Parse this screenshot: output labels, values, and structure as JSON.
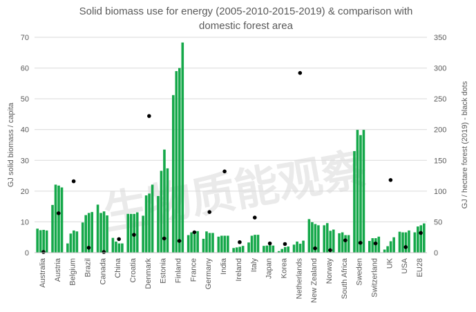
{
  "chart_data": {
    "type": "bar",
    "title_lines": [
      "Solid biomass use for energy (2005-2010-2015-2019) & comparison with",
      "domestic forest area"
    ],
    "ylabel": "GJ solid biomass / capita",
    "y2label": "GJ / hectare forest (2019) - black dots",
    "ylim": [
      0,
      70
    ],
    "y2lim": [
      0,
      350
    ],
    "yticks": [
      0,
      10,
      20,
      30,
      40,
      50,
      60,
      70
    ],
    "y2ticks": [
      0,
      50,
      100,
      150,
      200,
      250,
      300,
      350
    ],
    "years": [
      "2005",
      "2010",
      "2015",
      "2019"
    ],
    "colors": {
      "bar": "#15a84a",
      "dot": "#000000",
      "grid": "#d9d9d9",
      "text": "#595959"
    },
    "watermark": "生物质能观察",
    "categories": [
      "Australia",
      "Austria",
      "Belgium",
      "Brazil",
      "Canada",
      "China",
      "Croatia",
      "Denmark",
      "Estonia",
      "Finland",
      "France",
      "Germany",
      "India",
      "Ireland",
      "Italy",
      "Japan",
      "Korea",
      "Netherlands",
      "New Zealand",
      "Norway",
      "South Africa",
      "Sweden",
      "Switzerland",
      "UK",
      "USA",
      "EU28"
    ],
    "series": [
      {
        "values": [
          [
            7.8,
            7.3,
            7.4,
            7.2
          ],
          [
            15.5,
            22.1,
            21.8,
            21.2
          ],
          [
            3.0,
            6.2,
            7.2,
            6.9
          ],
          [
            9.8,
            12.2,
            12.9,
            13.2
          ],
          [
            15.6,
            12.9,
            13.4,
            12.1
          ],
          [
            4.8,
            3.6,
            3.0,
            3.0
          ],
          [
            12.6,
            12.6,
            12.6,
            13.1
          ],
          [
            12.0,
            18.6,
            19.2,
            22.1
          ],
          [
            18.4,
            26.6,
            33.5,
            27.4
          ],
          [
            51.2,
            59.0,
            60.0,
            68.3
          ],
          [
            5.7,
            6.6,
            6.0,
            7.0
          ],
          [
            4.5,
            6.9,
            6.4,
            6.4
          ],
          [
            5.2,
            5.5,
            5.5,
            5.5
          ],
          [
            1.5,
            1.7,
            1.9,
            2.2
          ],
          [
            3.3,
            5.5,
            5.8,
            5.8
          ],
          [
            2.2,
            2.3,
            2.4,
            2.3
          ],
          [
            0.5,
            1.2,
            1.8,
            2.0
          ],
          [
            2.6,
            3.6,
            2.9,
            3.9
          ],
          [
            10.9,
            9.9,
            9.3,
            8.9
          ],
          [
            8.9,
            9.6,
            7.1,
            7.5
          ],
          [
            6.3,
            6.6,
            5.7,
            5.7
          ],
          [
            33.0,
            39.9,
            38.2,
            39.9
          ],
          [
            3.8,
            4.7,
            4.7,
            5.2
          ],
          [
            1.0,
            2.1,
            3.7,
            5.0
          ],
          [
            6.8,
            6.6,
            6.6,
            7.2
          ],
          [
            6.6,
            8.5,
            8.9,
            9.5
          ]
        ]
      },
      {
        "values": [
          1,
          64,
          116,
          8,
          1,
          22,
          29,
          222,
          23,
          19,
          33,
          66,
          132,
          17,
          57,
          15,
          14,
          292,
          7,
          4,
          20,
          16,
          15,
          118,
          9,
          32
        ]
      }
    ]
  }
}
